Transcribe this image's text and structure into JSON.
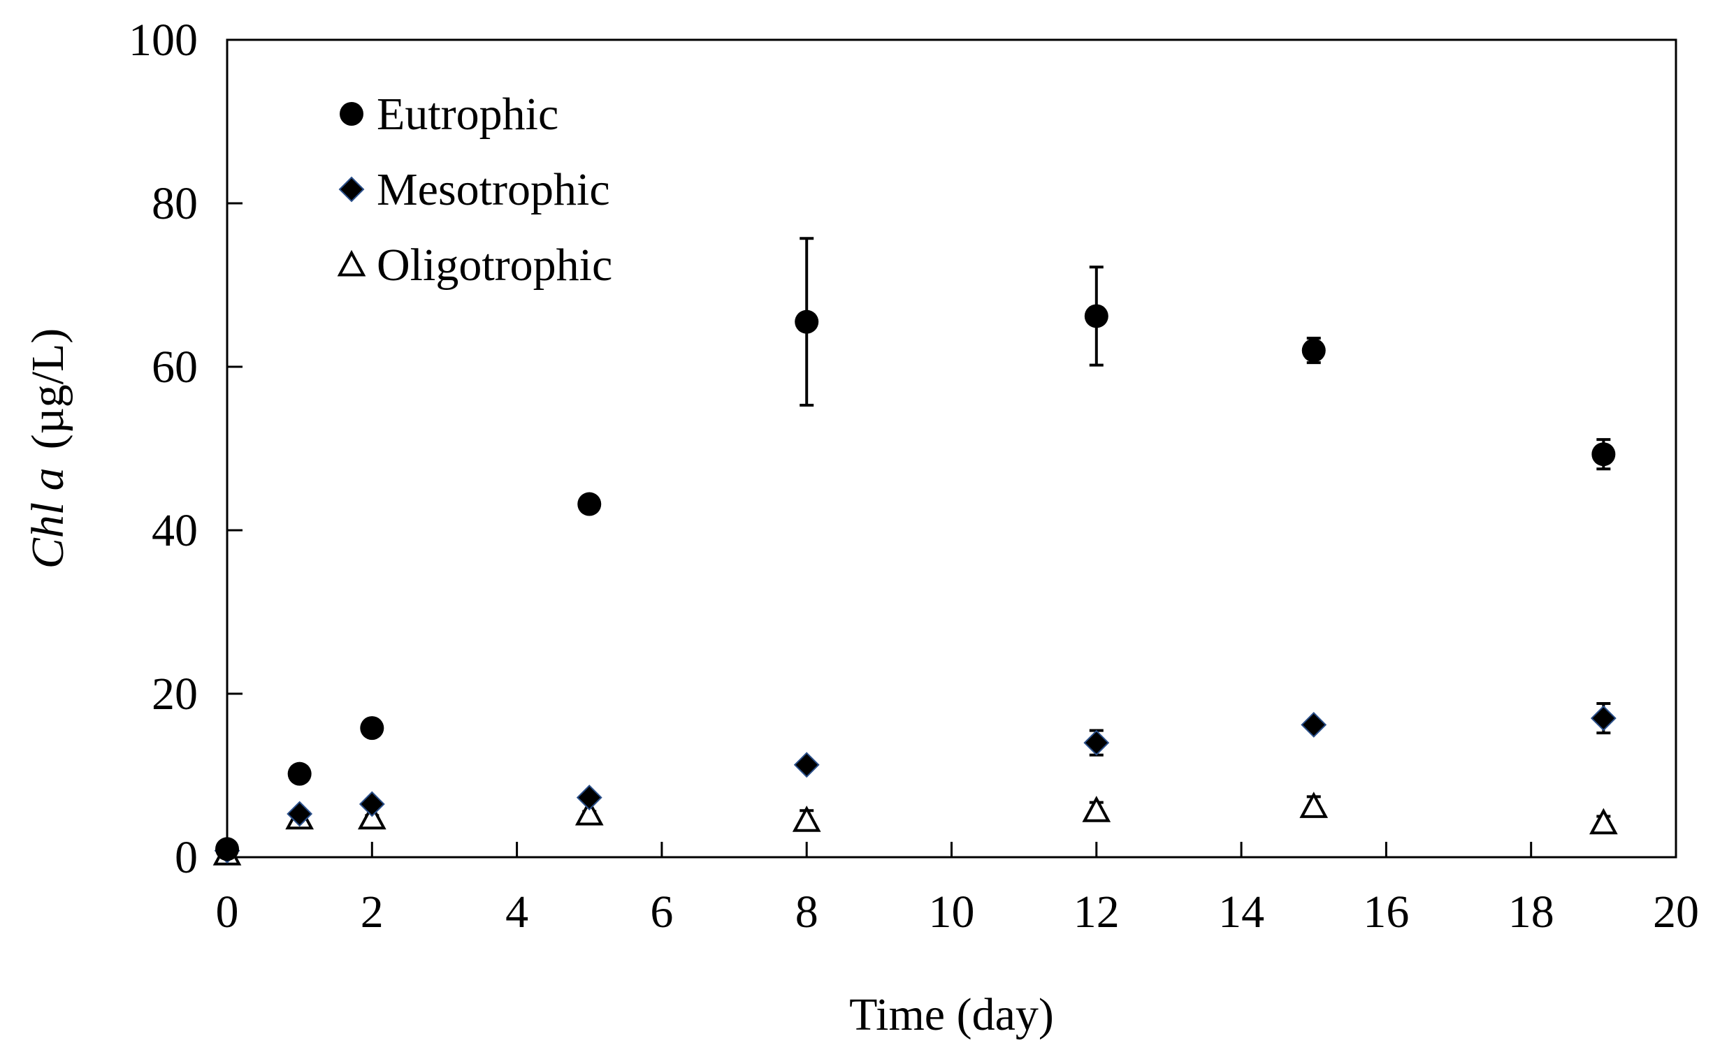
{
  "chart_data": {
    "type": "scatter",
    "title": "",
    "xlabel": "Time (day)",
    "ylabel": {
      "italic": "Chl a",
      "unit": "(µg/L)"
    },
    "xlim": [
      0,
      20
    ],
    "ylim": [
      0,
      100
    ],
    "x_ticks": [
      0,
      2,
      4,
      6,
      8,
      10,
      12,
      14,
      16,
      18,
      20
    ],
    "y_ticks": [
      0,
      20,
      40,
      60,
      80,
      100
    ],
    "x_tick_labels": [
      "0",
      "2",
      "4",
      "6",
      "8",
      "10",
      "12",
      "14",
      "16",
      "18",
      "20"
    ],
    "y_tick_labels": [
      "0",
      "20",
      "40",
      "60",
      "80",
      "100"
    ],
    "grid": false,
    "legend_position": "top-left",
    "series": [
      {
        "name": "Eutrophic",
        "marker": "filled-circle",
        "color": "#000000",
        "x": [
          0,
          1,
          2,
          5,
          8,
          12,
          15,
          19
        ],
        "y": [
          1.0,
          10.2,
          15.8,
          43.2,
          65.5,
          66.2,
          62.0,
          49.3
        ],
        "error": [
          0.5,
          0.5,
          1.0,
          0.5,
          10.2,
          6.0,
          1.5,
          1.8
        ]
      },
      {
        "name": "Mesotrophic",
        "marker": "filled-diamond",
        "color": "#000000",
        "edge_color": "#2a4f8a",
        "x": [
          0,
          1,
          2,
          5,
          8,
          12,
          15,
          19
        ],
        "y": [
          0.8,
          5.3,
          6.5,
          7.3,
          11.3,
          14.0,
          16.2,
          17.0
        ],
        "error": [
          0.3,
          0.5,
          0.5,
          0.5,
          0.5,
          1.5,
          0.5,
          1.8
        ]
      },
      {
        "name": "Oligotrophic",
        "marker": "open-triangle",
        "color": "#000000",
        "x": [
          0,
          1,
          2,
          5,
          8,
          12,
          15,
          19
        ],
        "y": [
          0.4,
          4.8,
          4.8,
          5.3,
          4.5,
          5.7,
          6.2,
          4.2
        ],
        "error": [
          0.3,
          0.3,
          0.3,
          0.3,
          1.2,
          1.0,
          1.2,
          0.8
        ]
      }
    ]
  }
}
